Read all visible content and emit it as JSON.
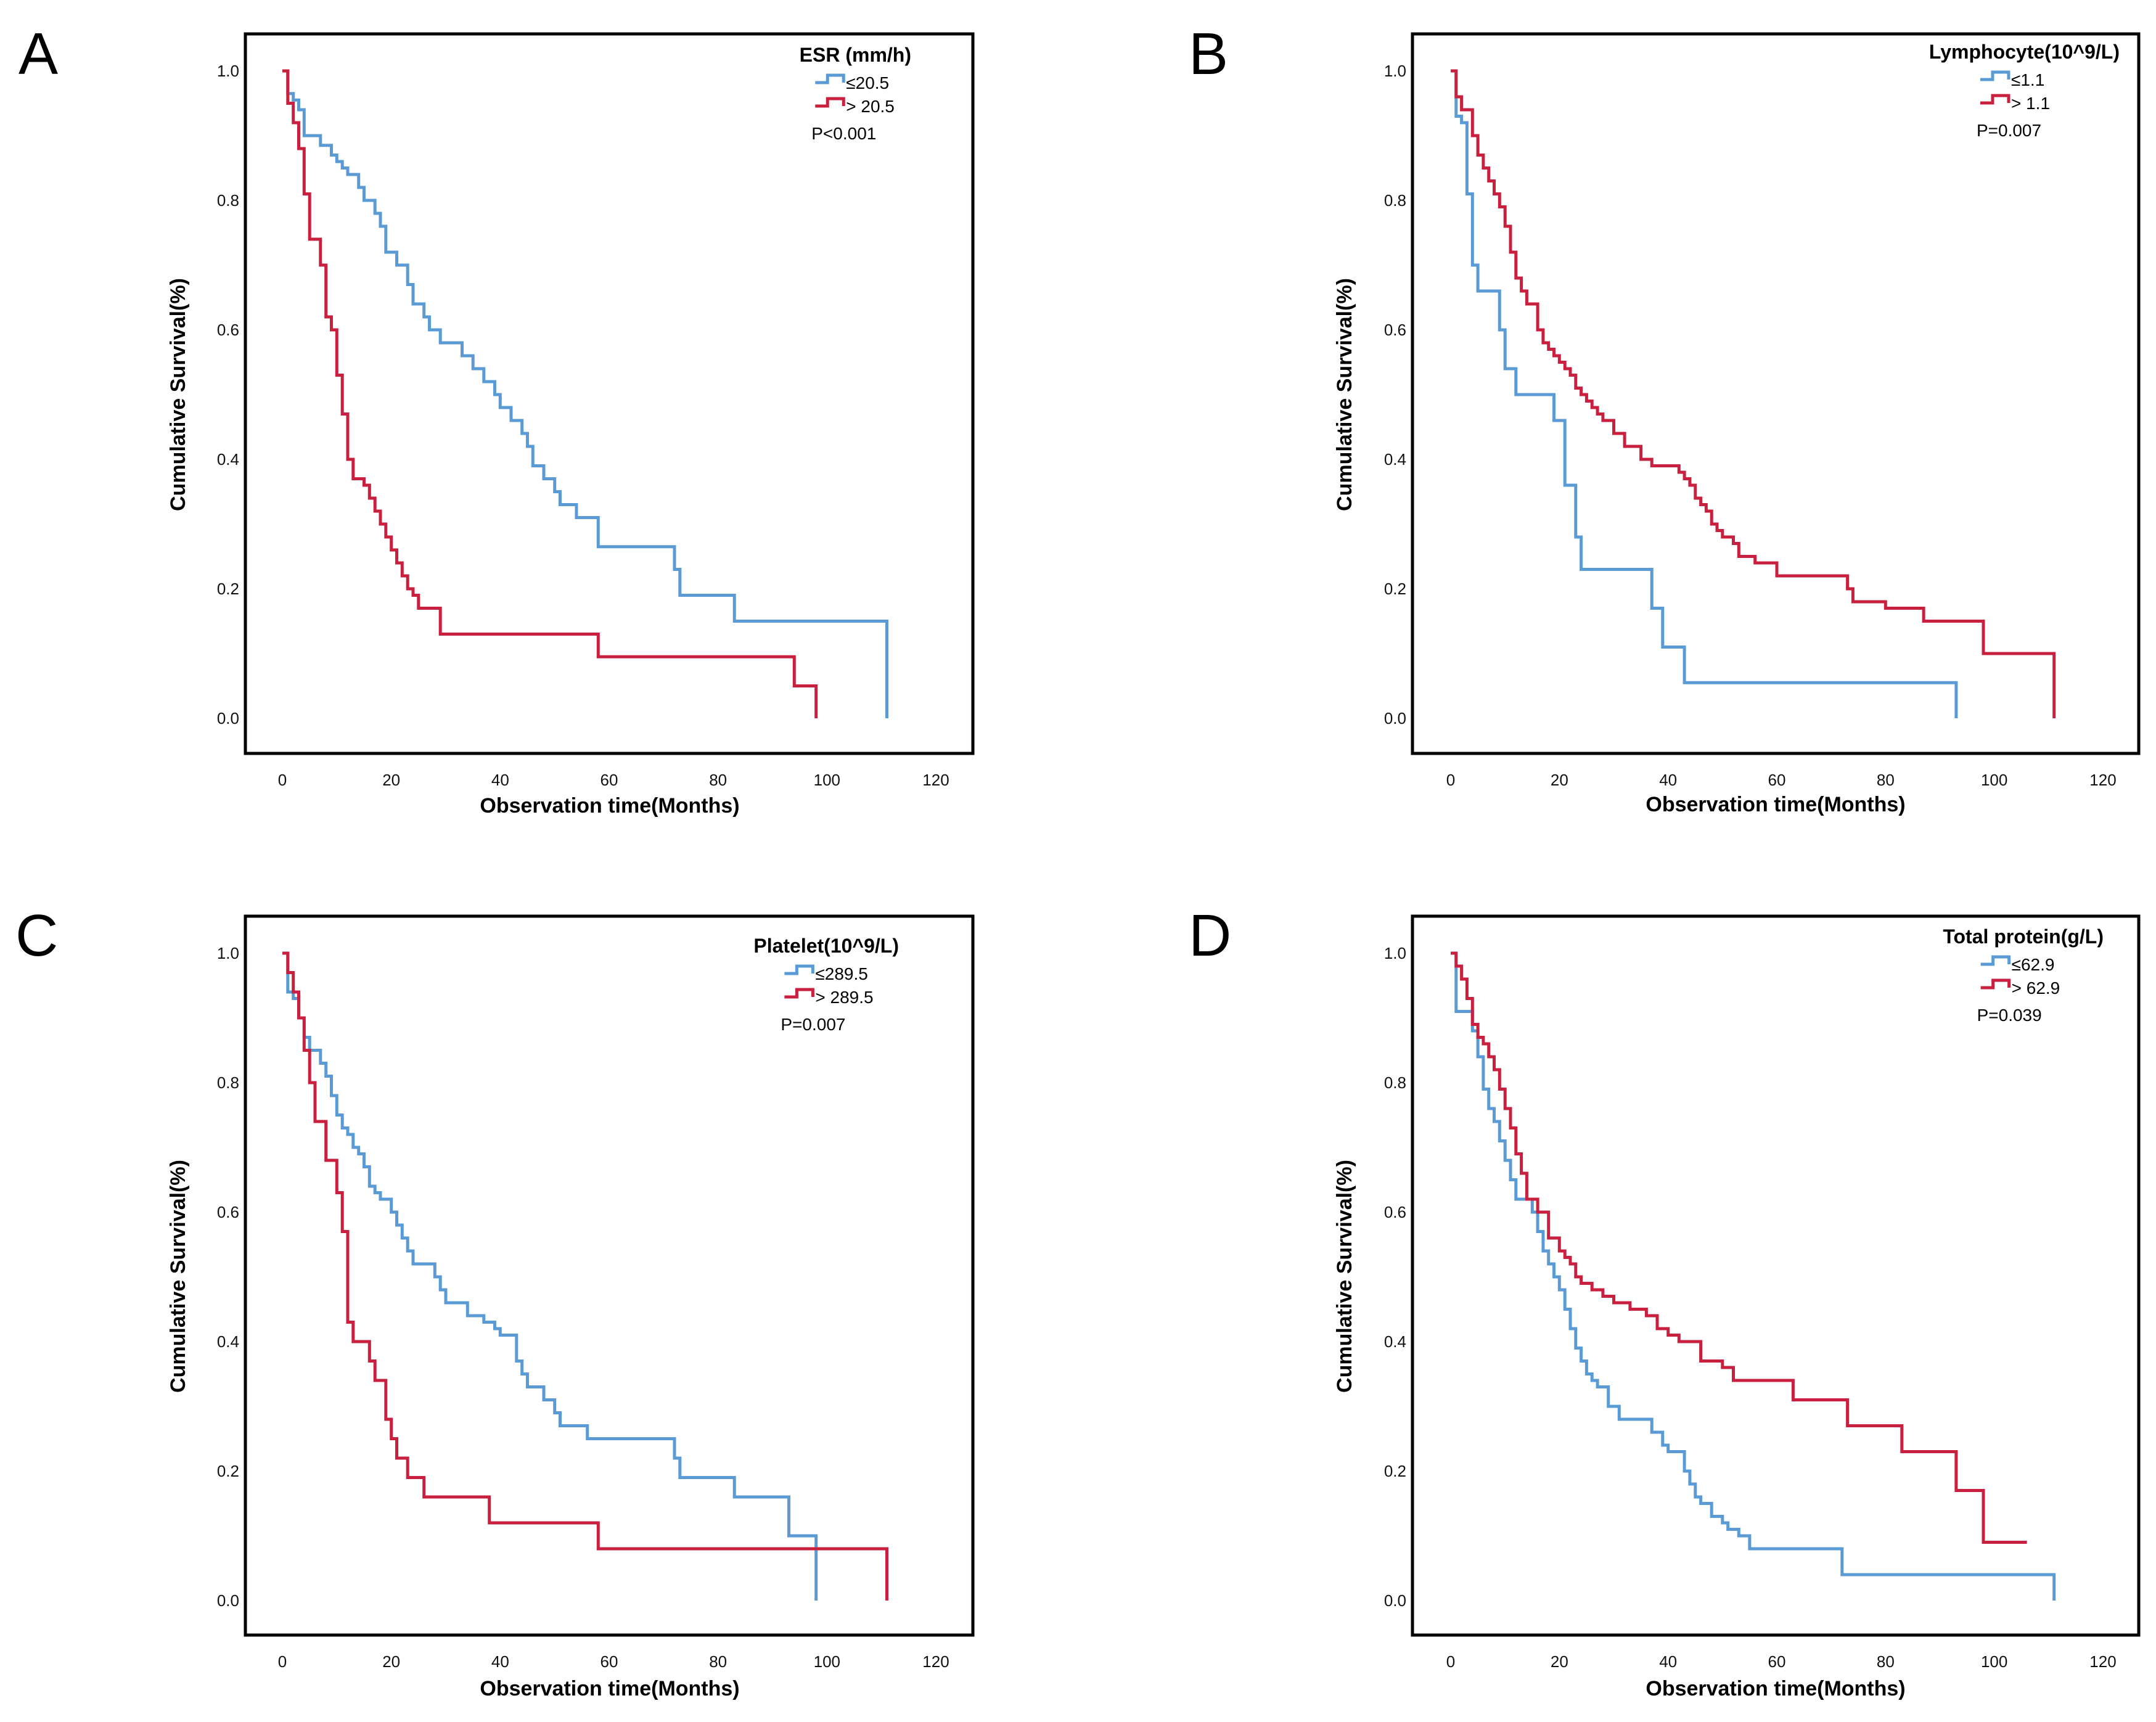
{
  "figure": {
    "colors": {
      "low_group": "#5b9bd5",
      "high_group": "#c8203e"
    }
  },
  "chart_data": [
    {
      "panel": "A",
      "type": "line",
      "subtype": "kaplan-meier step",
      "xlabel": "Observation time(Months)",
      "ylabel": "Cumulative Survival(%)",
      "xlim": [
        0,
        120
      ],
      "ylim": [
        0,
        1
      ],
      "xticks": [
        "0",
        "20",
        "40",
        "60",
        "80",
        "100",
        "120"
      ],
      "yticks": [
        "0.0",
        "0.2",
        "0.4",
        "0.6",
        "0.8",
        "1.0"
      ],
      "legend_title": "ESR (mm/h)",
      "p_value": "P<0.001",
      "series": [
        {
          "name": "≤20.5",
          "color": "#5b9bd5",
          "x": [
            0,
            1,
            2,
            3,
            4,
            7,
            9,
            10,
            11,
            12,
            14,
            15,
            17,
            18,
            19,
            21,
            23,
            24,
            26,
            27,
            29,
            30,
            33,
            35,
            37,
            39,
            40,
            42,
            44,
            45,
            46,
            48,
            50,
            51,
            54,
            58,
            72,
            73,
            74,
            83,
            111,
            111
          ],
          "y": [
            1.0,
            0.965,
            0.955,
            0.94,
            0.9,
            0.885,
            0.87,
            0.86,
            0.85,
            0.84,
            0.82,
            0.8,
            0.78,
            0.76,
            0.72,
            0.7,
            0.67,
            0.64,
            0.62,
            0.6,
            0.58,
            0.58,
            0.56,
            0.54,
            0.52,
            0.5,
            0.48,
            0.46,
            0.44,
            0.42,
            0.39,
            0.37,
            0.35,
            0.33,
            0.31,
            0.265,
            0.23,
            0.19,
            0.19,
            0.15,
            0.15,
            0.0
          ]
        },
        {
          "name": "> 20.5",
          "color": "#c8203e",
          "x": [
            0,
            1,
            2,
            3,
            4,
            5,
            6,
            7,
            8,
            9,
            10,
            11,
            12,
            13,
            15,
            16,
            17,
            18,
            19,
            20,
            21,
            22,
            23,
            24,
            25,
            26,
            29,
            57,
            58,
            93,
            94,
            98,
            98
          ],
          "y": [
            1.0,
            0.95,
            0.92,
            0.88,
            0.81,
            0.74,
            0.74,
            0.7,
            0.62,
            0.6,
            0.53,
            0.47,
            0.4,
            0.37,
            0.36,
            0.34,
            0.32,
            0.3,
            0.28,
            0.26,
            0.24,
            0.22,
            0.2,
            0.19,
            0.17,
            0.17,
            0.13,
            0.13,
            0.095,
            0.095,
            0.05,
            0.05,
            0.0
          ]
        }
      ]
    },
    {
      "panel": "B",
      "type": "line",
      "subtype": "kaplan-meier step",
      "xlabel": "Observation time(Months)",
      "ylabel": "Cumulative Survival(%)",
      "xlim": [
        0,
        120
      ],
      "ylim": [
        0,
        1
      ],
      "xticks": [
        "0",
        "20",
        "40",
        "60",
        "80",
        "100",
        "120"
      ],
      "yticks": [
        "0.0",
        "0.2",
        "0.4",
        "0.6",
        "0.8",
        "1.0"
      ],
      "legend_title": "Lymphocyte(10^9/L)",
      "p_value": "P=0.007",
      "series": [
        {
          "name": "≤1.1",
          "color": "#5b9bd5",
          "x": [
            0,
            1,
            2,
            3,
            4,
            5,
            7,
            9,
            10,
            12,
            16,
            19,
            20,
            21,
            22,
            23,
            24,
            30,
            36,
            37,
            38,
            39,
            40,
            42,
            43,
            93,
            93
          ],
          "y": [
            1.0,
            0.93,
            0.92,
            0.81,
            0.7,
            0.66,
            0.66,
            0.6,
            0.54,
            0.5,
            0.5,
            0.46,
            0.46,
            0.36,
            0.36,
            0.28,
            0.23,
            0.23,
            0.23,
            0.17,
            0.17,
            0.11,
            0.11,
            0.11,
            0.055,
            0.055,
            0.0
          ]
        },
        {
          "name": "> 1.1",
          "color": "#c8203e",
          "x": [
            0,
            1,
            2,
            3,
            4,
            5,
            6,
            7,
            8,
            9,
            10,
            11,
            12,
            13,
            14,
            15,
            16,
            17,
            18,
            19,
            20,
            21,
            22,
            23,
            24,
            25,
            26,
            27,
            28,
            30,
            32,
            35,
            37,
            42,
            43,
            44,
            45,
            46,
            47,
            48,
            49,
            50,
            52,
            53,
            56,
            60,
            73,
            74,
            80,
            87,
            98,
            111,
            111
          ],
          "y": [
            1.0,
            0.96,
            0.94,
            0.94,
            0.9,
            0.87,
            0.85,
            0.83,
            0.81,
            0.79,
            0.76,
            0.72,
            0.68,
            0.66,
            0.64,
            0.64,
            0.6,
            0.58,
            0.57,
            0.56,
            0.55,
            0.54,
            0.53,
            0.51,
            0.5,
            0.49,
            0.48,
            0.47,
            0.46,
            0.44,
            0.42,
            0.4,
            0.39,
            0.38,
            0.37,
            0.36,
            0.34,
            0.33,
            0.32,
            0.3,
            0.29,
            0.28,
            0.27,
            0.25,
            0.24,
            0.22,
            0.2,
            0.18,
            0.17,
            0.15,
            0.1,
            0.1,
            0.0
          ]
        }
      ]
    },
    {
      "panel": "C",
      "type": "line",
      "subtype": "kaplan-meier step",
      "xlabel": "Observation time(Months)",
      "ylabel": "Cumulative Survival(%)",
      "xlim": [
        0,
        120
      ],
      "ylim": [
        0,
        1
      ],
      "xticks": [
        "0",
        "20",
        "40",
        "60",
        "80",
        "100",
        "120"
      ],
      "yticks": [
        "0.0",
        "0.2",
        "0.4",
        "0.6",
        "0.8",
        "1.0"
      ],
      "legend_title": "Platelet(10^9/L)",
      "p_value": "P=0.007",
      "series": [
        {
          "name": "≤289.5",
          "color": "#5b9bd5",
          "x": [
            0,
            1,
            2,
            3,
            4,
            5,
            7,
            8,
            9,
            10,
            11,
            12,
            13,
            14,
            15,
            16,
            17,
            18,
            20,
            21,
            22,
            23,
            24,
            25,
            28,
            29,
            30,
            31,
            34,
            37,
            39,
            40,
            42,
            43,
            44,
            45,
            46,
            48,
            50,
            51,
            53,
            56,
            58,
            72,
            73,
            74,
            83,
            93,
            98,
            98
          ],
          "y": [
            1.0,
            0.94,
            0.93,
            0.9,
            0.87,
            0.85,
            0.83,
            0.81,
            0.78,
            0.75,
            0.73,
            0.72,
            0.7,
            0.69,
            0.67,
            0.64,
            0.63,
            0.62,
            0.6,
            0.58,
            0.56,
            0.54,
            0.52,
            0.52,
            0.5,
            0.48,
            0.46,
            0.46,
            0.44,
            0.43,
            0.42,
            0.41,
            0.41,
            0.37,
            0.35,
            0.33,
            0.33,
            0.31,
            0.29,
            0.27,
            0.27,
            0.25,
            0.25,
            0.22,
            0.19,
            0.19,
            0.16,
            0.1,
            0.1,
            0.0
          ]
        },
        {
          "name": "> 289.5",
          "color": "#c8203e",
          "x": [
            0,
            1,
            2,
            3,
            4,
            5,
            6,
            7,
            8,
            9,
            10,
            11,
            12,
            13,
            15,
            16,
            17,
            18,
            19,
            20,
            21,
            22,
            23,
            25,
            26,
            29,
            38,
            58,
            111,
            111
          ],
          "y": [
            1.0,
            0.97,
            0.94,
            0.9,
            0.85,
            0.8,
            0.74,
            0.74,
            0.68,
            0.68,
            0.63,
            0.57,
            0.43,
            0.4,
            0.4,
            0.37,
            0.34,
            0.34,
            0.28,
            0.25,
            0.22,
            0.22,
            0.19,
            0.19,
            0.16,
            0.16,
            0.12,
            0.08,
            0.08,
            0.0
          ]
        }
      ]
    },
    {
      "panel": "D",
      "type": "line",
      "subtype": "kaplan-meier step",
      "xlabel": "Observation time(Months)",
      "ylabel": "Cumulative Survival(%)",
      "xlim": [
        0,
        120
      ],
      "ylim": [
        0,
        1
      ],
      "xticks": [
        "0",
        "20",
        "40",
        "60",
        "80",
        "100",
        "120"
      ],
      "yticks": [
        "0.0",
        "0.2",
        "0.4",
        "0.6",
        "0.8",
        "1.0"
      ],
      "legend_title": "Total protein(g/L)",
      "p_value": "P=0.039",
      "series": [
        {
          "name": "≤62.9",
          "color": "#5b9bd5",
          "x": [
            0,
            1,
            4,
            5,
            6,
            7,
            8,
            9,
            10,
            11,
            12,
            13,
            15,
            16,
            17,
            18,
            19,
            20,
            21,
            22,
            23,
            24,
            25,
            26,
            27,
            29,
            31,
            35,
            37,
            39,
            40,
            42,
            43,
            44,
            45,
            46,
            48,
            50,
            51,
            53,
            55,
            60,
            72,
            75,
            90,
            111,
            111
          ],
          "y": [
            1.0,
            0.91,
            0.88,
            0.84,
            0.79,
            0.76,
            0.74,
            0.71,
            0.68,
            0.65,
            0.62,
            0.62,
            0.6,
            0.57,
            0.54,
            0.52,
            0.5,
            0.48,
            0.45,
            0.42,
            0.39,
            0.37,
            0.35,
            0.34,
            0.33,
            0.3,
            0.28,
            0.28,
            0.26,
            0.24,
            0.23,
            0.23,
            0.2,
            0.18,
            0.16,
            0.15,
            0.13,
            0.12,
            0.11,
            0.1,
            0.08,
            0.08,
            0.04,
            0.04,
            0.04,
            0.04,
            0.0
          ]
        },
        {
          "name": "> 62.9",
          "color": "#c8203e",
          "x": [
            0,
            1,
            2,
            3,
            4,
            5,
            6,
            7,
            8,
            9,
            10,
            11,
            12,
            13,
            14,
            16,
            18,
            20,
            21,
            22,
            23,
            24,
            26,
            28,
            30,
            33,
            36,
            38,
            40,
            42,
            46,
            50,
            52,
            56,
            63,
            73,
            74,
            83,
            93,
            96,
            98,
            106
          ],
          "y": [
            1.0,
            0.98,
            0.96,
            0.93,
            0.89,
            0.87,
            0.86,
            0.84,
            0.82,
            0.79,
            0.76,
            0.73,
            0.69,
            0.66,
            0.62,
            0.6,
            0.56,
            0.54,
            0.53,
            0.52,
            0.5,
            0.49,
            0.48,
            0.47,
            0.46,
            0.45,
            0.44,
            0.42,
            0.41,
            0.4,
            0.37,
            0.36,
            0.34,
            0.34,
            0.31,
            0.27,
            0.27,
            0.23,
            0.17,
            0.17,
            0.09,
            0.09
          ]
        }
      ]
    }
  ]
}
